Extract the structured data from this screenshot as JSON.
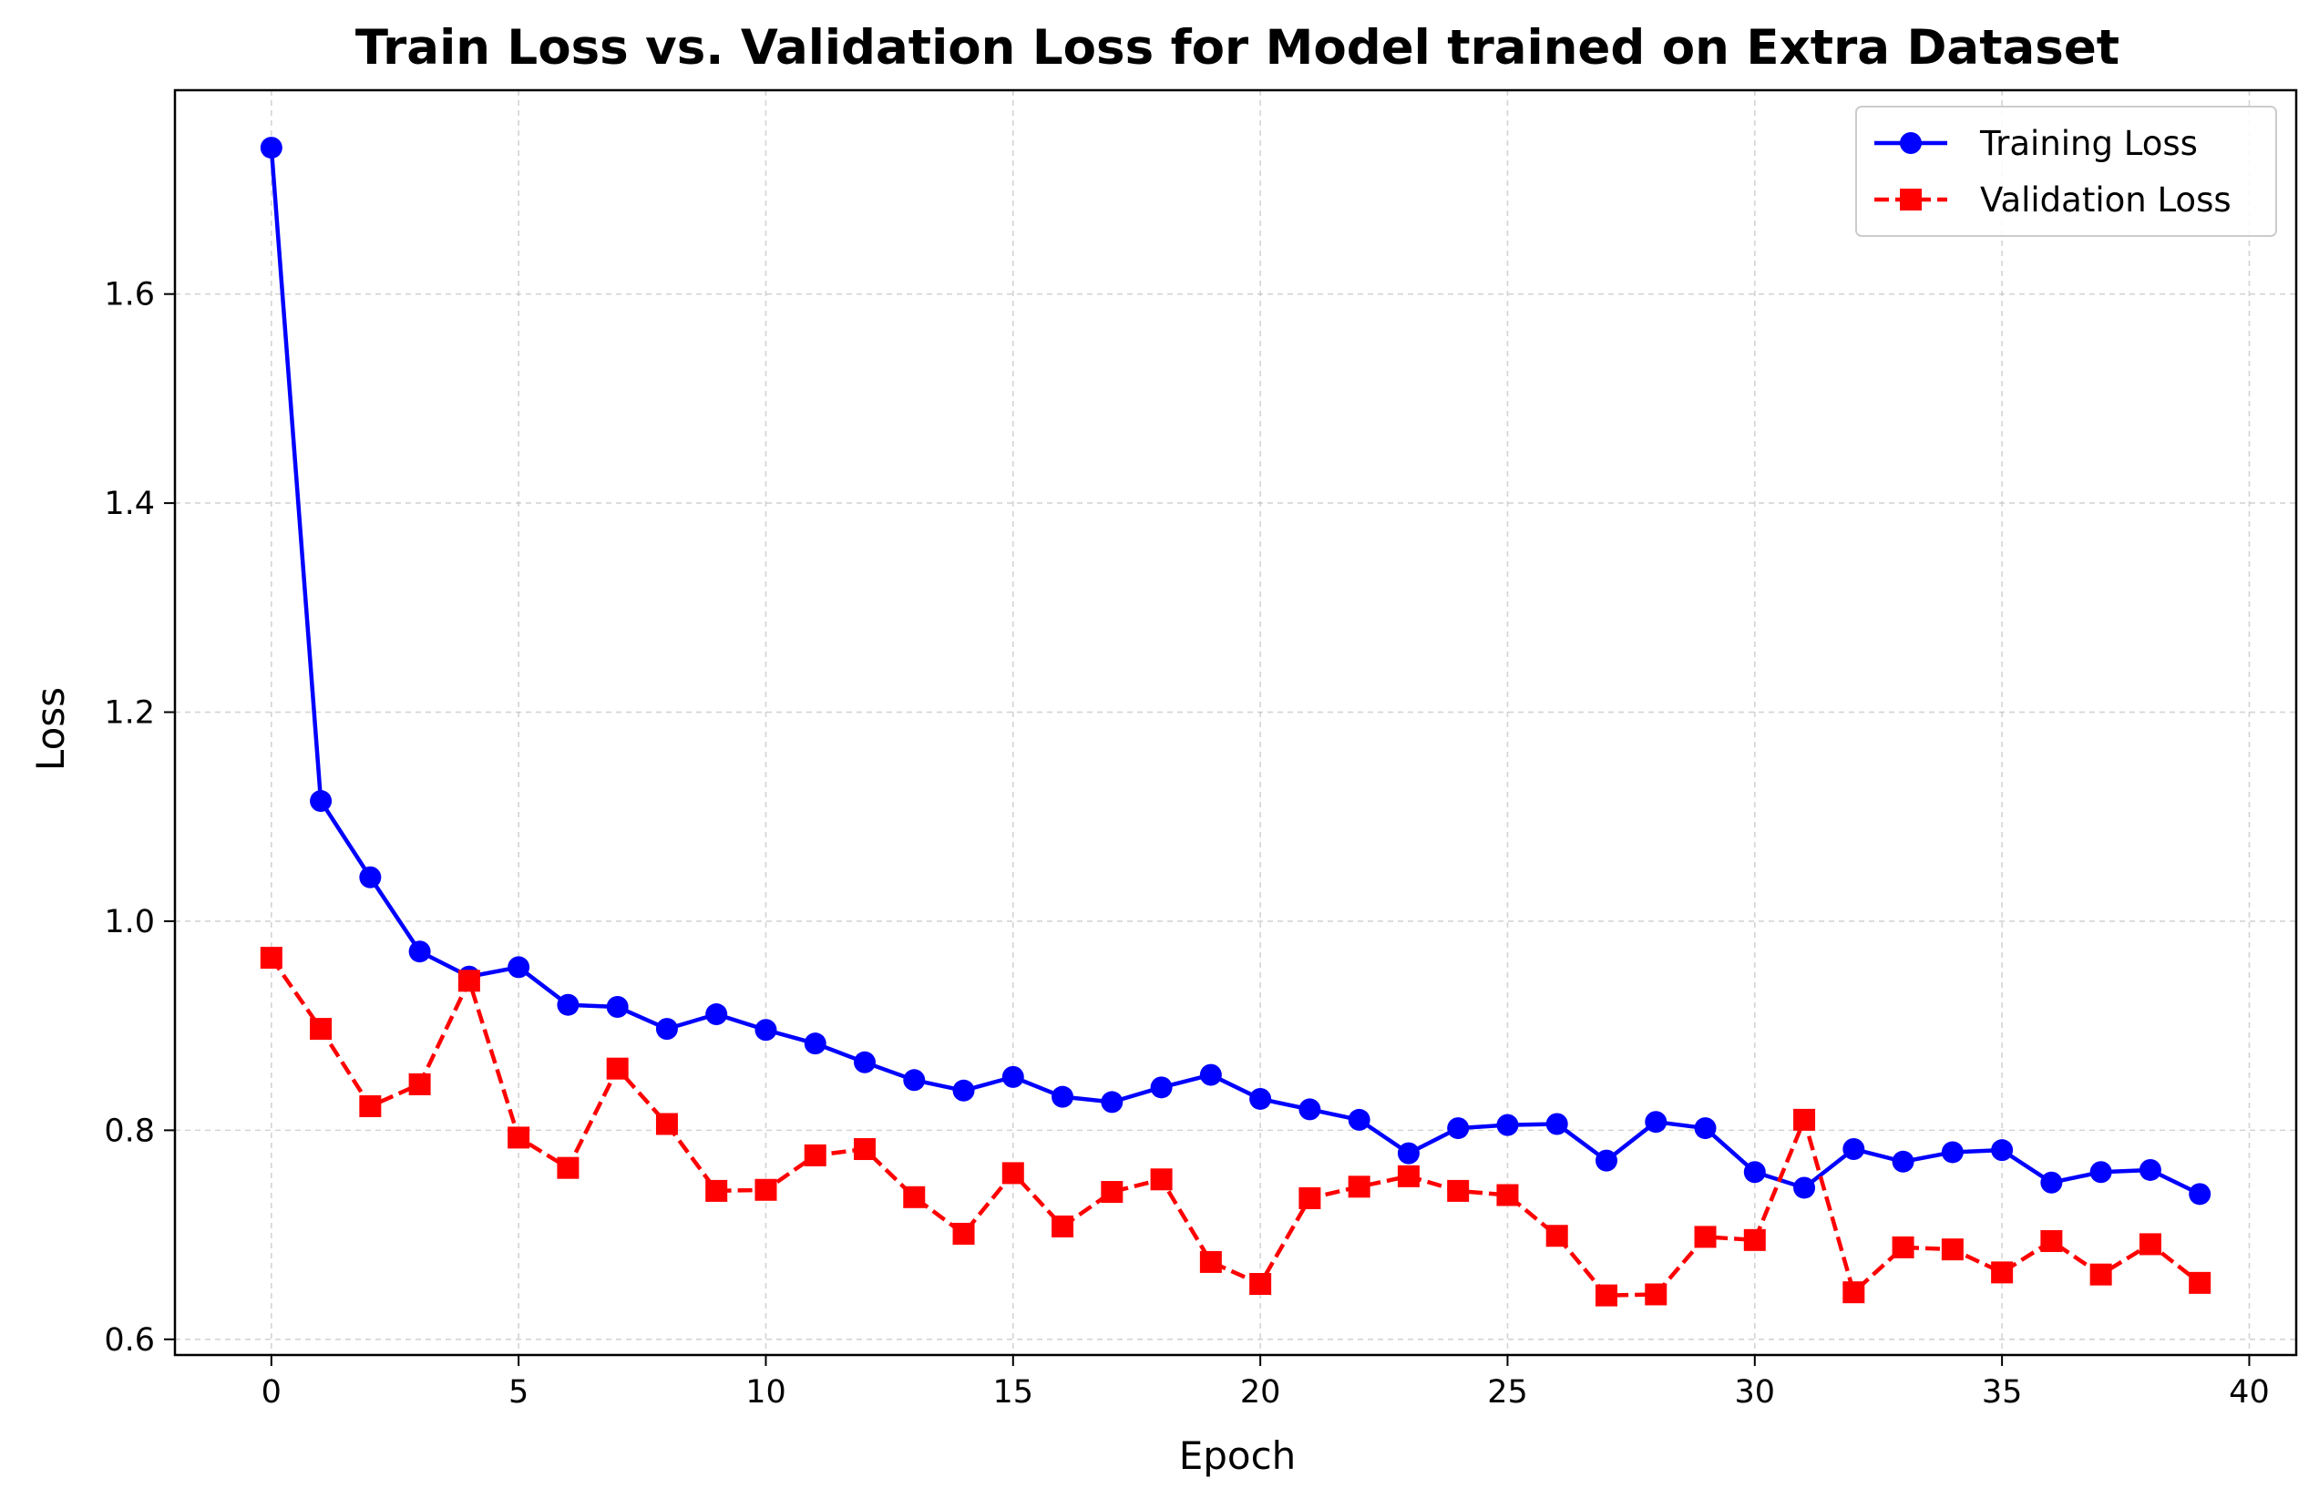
{
  "chart_data": {
    "type": "line",
    "title": "Train Loss vs. Validation Loss for Model trained on Extra Dataset",
    "xlabel": "Epoch",
    "ylabel": "Loss",
    "xlim": [
      -1.95,
      40.95
    ],
    "ylim": [
      0.585,
      1.795
    ],
    "x_ticks": [
      0,
      5,
      10,
      15,
      20,
      25,
      30,
      35,
      40
    ],
    "y_ticks": [
      0.6,
      0.8,
      1.0,
      1.2,
      1.4,
      1.6
    ],
    "y_tick_labels": [
      "0.6",
      "0.8",
      "1.0",
      "1.2",
      "1.4",
      "1.6"
    ],
    "grid": true,
    "legend_position": "top-right",
    "x": [
      0,
      1,
      2,
      3,
      4,
      5,
      6,
      7,
      8,
      9,
      10,
      11,
      12,
      13,
      14,
      15,
      16,
      17,
      18,
      19,
      20,
      21,
      22,
      23,
      24,
      25,
      26,
      27,
      28,
      29,
      30,
      31,
      32,
      33,
      34,
      35,
      36,
      37,
      38,
      39
    ],
    "series": [
      {
        "name": "Training Loss",
        "color": "#0000ff",
        "line_style": "solid",
        "marker": "circle",
        "values": [
          1.74,
          1.115,
          1.042,
          0.971,
          0.947,
          0.956,
          0.92,
          0.918,
          0.897,
          0.911,
          0.896,
          0.883,
          0.865,
          0.848,
          0.838,
          0.851,
          0.832,
          0.827,
          0.841,
          0.853,
          0.83,
          0.82,
          0.81,
          0.778,
          0.802,
          0.805,
          0.806,
          0.771,
          0.808,
          0.802,
          0.76,
          0.745,
          0.782,
          0.77,
          0.779,
          0.781,
          0.75,
          0.76,
          0.762,
          0.739
        ]
      },
      {
        "name": "Validation Loss",
        "color": "#ff0000",
        "line_style": "dashed",
        "marker": "square",
        "values": [
          0.965,
          0.897,
          0.823,
          0.844,
          0.943,
          0.793,
          0.764,
          0.859,
          0.806,
          0.742,
          0.743,
          0.776,
          0.782,
          0.736,
          0.701,
          0.759,
          0.708,
          0.741,
          0.753,
          0.674,
          0.653,
          0.735,
          0.746,
          0.756,
          0.742,
          0.738,
          0.699,
          0.642,
          0.643,
          0.698,
          0.695,
          0.81,
          0.645,
          0.688,
          0.686,
          0.664,
          0.694,
          0.662,
          0.691,
          0.654
        ]
      }
    ]
  }
}
